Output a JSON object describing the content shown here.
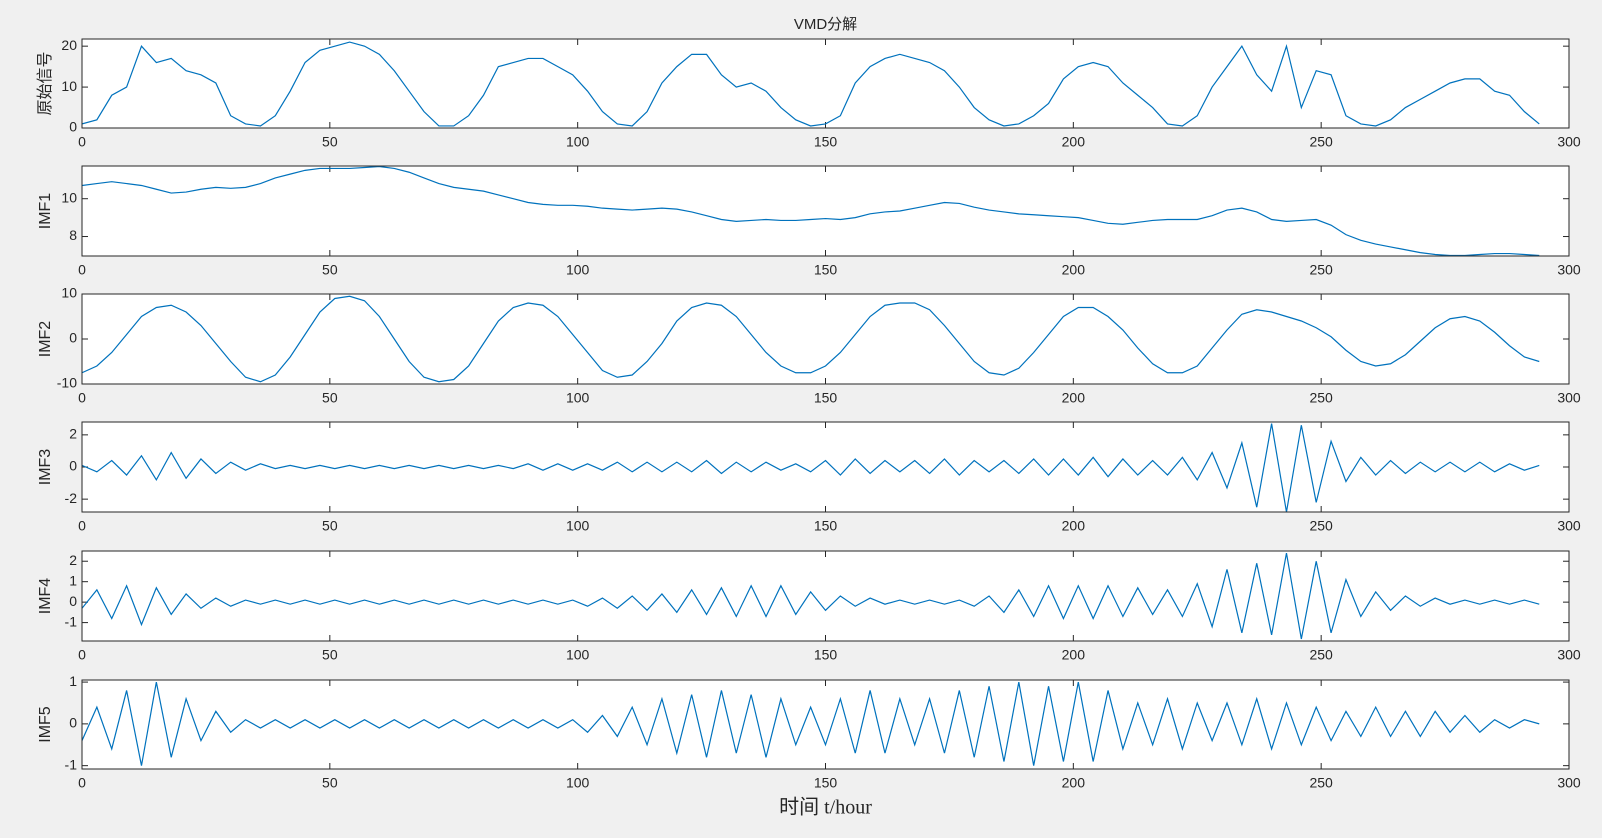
{
  "chart_data": [
    {
      "type": "line",
      "title": "VMD分解",
      "ylabel": "原始信号",
      "color": "#0072bd",
      "x": [
        0,
        3,
        6,
        9,
        12,
        15,
        18,
        21,
        24,
        27,
        30,
        33,
        36,
        39,
        42,
        45,
        48,
        51,
        54,
        57,
        60,
        63,
        66,
        69,
        72,
        75,
        78,
        81,
        84,
        87,
        90,
        93,
        96,
        99,
        102,
        105,
        108,
        111,
        114,
        117,
        120,
        123,
        126,
        129,
        132,
        135,
        138,
        141,
        144,
        147,
        150,
        153,
        156,
        159,
        162,
        165,
        168,
        171,
        174,
        177,
        180,
        183,
        186,
        189,
        192,
        195,
        198,
        201,
        204,
        207,
        210,
        213,
        216,
        219,
        222,
        225,
        228,
        231,
        234,
        237,
        240,
        243,
        246,
        249,
        252,
        255,
        258,
        261,
        264,
        267,
        270,
        273,
        276,
        279,
        282,
        285,
        288,
        291,
        294
      ],
      "values": [
        1,
        2,
        8,
        10,
        20,
        16,
        17,
        14,
        13,
        11,
        3,
        1,
        0.5,
        3,
        9,
        16,
        19,
        20,
        21,
        20,
        18,
        14,
        9,
        4,
        0.5,
        0.5,
        3,
        8,
        15,
        16,
        17,
        17,
        15,
        13,
        9,
        4,
        1,
        0.5,
        4,
        11,
        15,
        18,
        18,
        13,
        10,
        11,
        9,
        5,
        2,
        0.5,
        1,
        3,
        11,
        15,
        17,
        18,
        17,
        16,
        14,
        10,
        5,
        2,
        0.5,
        1,
        3,
        6,
        12,
        15,
        16,
        15,
        11,
        8,
        5,
        1,
        0.5,
        3,
        10,
        15,
        20,
        13,
        9,
        20,
        5,
        14,
        13,
        3,
        1,
        0.5,
        2,
        5,
        7,
        9,
        11,
        12,
        12,
        9,
        8,
        4,
        1
      ],
      "xlim": [
        0,
        300
      ],
      "xticks": [
        0,
        50,
        100,
        150,
        200,
        250,
        300
      ],
      "ylim": [
        0,
        21.75
      ],
      "yticks": [
        0,
        10,
        20
      ]
    },
    {
      "type": "line",
      "ylabel": "IMF1",
      "color": "#0072bd",
      "x": [
        0,
        3,
        6,
        9,
        12,
        15,
        18,
        21,
        24,
        27,
        30,
        33,
        36,
        39,
        42,
        45,
        48,
        51,
        54,
        57,
        60,
        63,
        66,
        69,
        72,
        75,
        78,
        81,
        84,
        87,
        90,
        93,
        96,
        99,
        102,
        105,
        108,
        111,
        114,
        117,
        120,
        123,
        126,
        129,
        132,
        135,
        138,
        141,
        144,
        147,
        150,
        153,
        156,
        159,
        162,
        165,
        168,
        171,
        174,
        177,
        180,
        183,
        186,
        189,
        192,
        195,
        198,
        201,
        204,
        207,
        210,
        213,
        216,
        219,
        222,
        225,
        228,
        231,
        234,
        237,
        240,
        243,
        246,
        249,
        252,
        255,
        258,
        261,
        264,
        267,
        270,
        273,
        276,
        279,
        282,
        285,
        288,
        291,
        294
      ],
      "values": [
        10.7,
        10.8,
        10.9,
        10.8,
        10.7,
        10.5,
        10.3,
        10.35,
        10.5,
        10.6,
        10.55,
        10.6,
        10.8,
        11.1,
        11.3,
        11.5,
        11.6,
        11.6,
        11.6,
        11.65,
        11.7,
        11.6,
        11.4,
        11.1,
        10.8,
        10.6,
        10.5,
        10.4,
        10.2,
        10.0,
        9.8,
        9.7,
        9.65,
        9.65,
        9.6,
        9.5,
        9.45,
        9.4,
        9.45,
        9.5,
        9.45,
        9.3,
        9.1,
        8.9,
        8.8,
        8.85,
        8.9,
        8.85,
        8.85,
        8.9,
        8.95,
        8.9,
        9.0,
        9.2,
        9.3,
        9.35,
        9.5,
        9.65,
        9.8,
        9.75,
        9.55,
        9.4,
        9.3,
        9.2,
        9.15,
        9.1,
        9.05,
        9.0,
        8.85,
        8.7,
        8.65,
        8.75,
        8.85,
        8.9,
        8.9,
        8.9,
        9.1,
        9.4,
        9.5,
        9.3,
        8.9,
        8.8,
        8.85,
        8.9,
        8.6,
        8.1,
        7.8,
        7.6,
        7.45,
        7.3,
        7.15,
        7.05,
        7.0,
        7.0,
        7.05,
        7.1,
        7.1,
        7.05,
        7.0
      ],
      "xlim": [
        0,
        300
      ],
      "xticks": [
        0,
        50,
        100,
        150,
        200,
        250,
        300
      ],
      "ylim": [
        6.97,
        11.73
      ],
      "yticks": [
        8,
        10
      ]
    },
    {
      "type": "line",
      "ylabel": "IMF2",
      "color": "#0072bd",
      "x": [
        0,
        3,
        6,
        9,
        12,
        15,
        18,
        21,
        24,
        27,
        30,
        33,
        36,
        39,
        42,
        45,
        48,
        51,
        54,
        57,
        60,
        63,
        66,
        69,
        72,
        75,
        78,
        81,
        84,
        87,
        90,
        93,
        96,
        99,
        102,
        105,
        108,
        111,
        114,
        117,
        120,
        123,
        126,
        129,
        132,
        135,
        138,
        141,
        144,
        147,
        150,
        153,
        156,
        159,
        162,
        165,
        168,
        171,
        174,
        177,
        180,
        183,
        186,
        189,
        192,
        195,
        198,
        201,
        204,
        207,
        210,
        213,
        216,
        219,
        222,
        225,
        228,
        231,
        234,
        237,
        240,
        243,
        246,
        249,
        252,
        255,
        258,
        261,
        264,
        267,
        270,
        273,
        276,
        279,
        282,
        285,
        288,
        291,
        294
      ],
      "values": [
        -7.5,
        -6,
        -3,
        1,
        5,
        7,
        7.5,
        6,
        3,
        -1,
        -5,
        -8.5,
        -9.5,
        -8,
        -4,
        1,
        6,
        9,
        9.5,
        8.5,
        5,
        0,
        -5,
        -8.5,
        -9.5,
        -9,
        -6,
        -1,
        4,
        7,
        8,
        7.5,
        5,
        1,
        -3,
        -7,
        -8.5,
        -8,
        -5,
        -1,
        4,
        7,
        8,
        7.5,
        5,
        1,
        -3,
        -6,
        -7.5,
        -7.5,
        -6,
        -3,
        1,
        5,
        7.5,
        8,
        8,
        6.5,
        3,
        -1,
        -5,
        -7.5,
        -8,
        -6.5,
        -3,
        1,
        5,
        7,
        7,
        5,
        2,
        -2,
        -5.5,
        -7.5,
        -7.5,
        -6,
        -2,
        2,
        5.5,
        6.5,
        6,
        5,
        4,
        2.5,
        0.5,
        -2.5,
        -5,
        -6,
        -5.5,
        -3.5,
        -0.5,
        2.5,
        4.5,
        5,
        4,
        1.5,
        -1.5,
        -4,
        -5
      ],
      "xlim": [
        0,
        300
      ],
      "xticks": [
        0,
        50,
        100,
        150,
        200,
        250,
        300
      ],
      "ylim": [
        -10,
        10
      ],
      "yticks": [
        -10,
        0,
        10
      ]
    },
    {
      "type": "line",
      "ylabel": "IMF3",
      "color": "#0072bd",
      "x": [
        0,
        3,
        6,
        9,
        12,
        15,
        18,
        21,
        24,
        27,
        30,
        33,
        36,
        39,
        42,
        45,
        48,
        51,
        54,
        57,
        60,
        63,
        66,
        69,
        72,
        75,
        78,
        81,
        84,
        87,
        90,
        93,
        96,
        99,
        102,
        105,
        108,
        111,
        114,
        117,
        120,
        123,
        126,
        129,
        132,
        135,
        138,
        141,
        144,
        147,
        150,
        153,
        156,
        159,
        162,
        165,
        168,
        171,
        174,
        177,
        180,
        183,
        186,
        189,
        192,
        195,
        198,
        201,
        204,
        207,
        210,
        213,
        216,
        219,
        222,
        225,
        228,
        231,
        234,
        237,
        240,
        243,
        246,
        249,
        252,
        255,
        258,
        261,
        264,
        267,
        270,
        273,
        276,
        279,
        282,
        285,
        288,
        291,
        294
      ],
      "values": [
        0.1,
        -0.3,
        0.4,
        -0.5,
        0.7,
        -0.8,
        0.9,
        -0.7,
        0.5,
        -0.4,
        0.3,
        -0.2,
        0.2,
        -0.1,
        0.1,
        -0.1,
        0.1,
        -0.1,
        0.1,
        -0.1,
        0.1,
        -0.1,
        0.1,
        -0.1,
        0.1,
        -0.1,
        0.1,
        -0.1,
        0.1,
        -0.1,
        0.2,
        -0.2,
        0.2,
        -0.2,
        0.2,
        -0.2,
        0.3,
        -0.3,
        0.3,
        -0.3,
        0.3,
        -0.3,
        0.4,
        -0.4,
        0.3,
        -0.3,
        0.3,
        -0.2,
        0.2,
        -0.3,
        0.4,
        -0.5,
        0.5,
        -0.4,
        0.4,
        -0.3,
        0.4,
        -0.4,
        0.5,
        -0.5,
        0.4,
        -0.3,
        0.4,
        -0.4,
        0.5,
        -0.5,
        0.5,
        -0.5,
        0.6,
        -0.6,
        0.5,
        -0.5,
        0.4,
        -0.5,
        0.6,
        -0.8,
        0.9,
        -1.3,
        1.5,
        -2.5,
        2.7,
        -2.8,
        2.6,
        -2.2,
        1.6,
        -0.9,
        0.6,
        -0.5,
        0.4,
        -0.4,
        0.3,
        -0.3,
        0.3,
        -0.3,
        0.3,
        -0.3,
        0.2,
        -0.2,
        0.1
      ],
      "xlim": [
        0,
        300
      ],
      "xticks": [
        0,
        50,
        100,
        150,
        200,
        250,
        300
      ],
      "ylim": [
        -2.8,
        2.8
      ],
      "yticks": [
        -2,
        0,
        2
      ]
    },
    {
      "type": "line",
      "ylabel": "IMF4",
      "color": "#0072bd",
      "x": [
        0,
        3,
        6,
        9,
        12,
        15,
        18,
        21,
        24,
        27,
        30,
        33,
        36,
        39,
        42,
        45,
        48,
        51,
        54,
        57,
        60,
        63,
        66,
        69,
        72,
        75,
        78,
        81,
        84,
        87,
        90,
        93,
        96,
        99,
        102,
        105,
        108,
        111,
        114,
        117,
        120,
        123,
        126,
        129,
        132,
        135,
        138,
        141,
        144,
        147,
        150,
        153,
        156,
        159,
        162,
        165,
        168,
        171,
        174,
        177,
        180,
        183,
        186,
        189,
        192,
        195,
        198,
        201,
        204,
        207,
        210,
        213,
        216,
        219,
        222,
        225,
        228,
        231,
        234,
        237,
        240,
        243,
        246,
        249,
        252,
        255,
        258,
        261,
        264,
        267,
        270,
        273,
        276,
        279,
        282,
        285,
        288,
        291,
        294
      ],
      "values": [
        -0.3,
        0.6,
        -0.8,
        0.8,
        -1.1,
        0.7,
        -0.6,
        0.4,
        -0.3,
        0.2,
        -0.2,
        0.1,
        -0.1,
        0.1,
        -0.1,
        0.1,
        -0.1,
        0.1,
        -0.1,
        0.1,
        -0.1,
        0.1,
        -0.1,
        0.1,
        -0.1,
        0.1,
        -0.1,
        0.1,
        -0.1,
        0.1,
        -0.1,
        0.1,
        -0.1,
        0.1,
        -0.2,
        0.2,
        -0.3,
        0.3,
        -0.4,
        0.4,
        -0.5,
        0.6,
        -0.6,
        0.7,
        -0.7,
        0.8,
        -0.7,
        0.8,
        -0.6,
        0.5,
        -0.4,
        0.3,
        -0.2,
        0.2,
        -0.1,
        0.1,
        -0.1,
        0.1,
        -0.1,
        0.1,
        -0.2,
        0.3,
        -0.5,
        0.6,
        -0.7,
        0.8,
        -0.8,
        0.8,
        -0.8,
        0.8,
        -0.7,
        0.7,
        -0.6,
        0.6,
        -0.7,
        0.9,
        -1.2,
        1.6,
        -1.5,
        1.9,
        -1.6,
        2.4,
        -1.8,
        2.0,
        -1.5,
        1.1,
        -0.7,
        0.5,
        -0.4,
        0.3,
        -0.2,
        0.2,
        -0.1,
        0.1,
        -0.1,
        0.1,
        -0.1,
        0.1,
        -0.1
      ],
      "xlim": [
        0,
        300
      ],
      "xticks": [
        0,
        50,
        100,
        150,
        200,
        250,
        300
      ],
      "ylim": [
        -1.9,
        2.5
      ],
      "yticks": [
        -1,
        0,
        1,
        2
      ]
    },
    {
      "type": "line",
      "ylabel": "IMF5",
      "xlabel": "时间 t/hour",
      "color": "#0072bd",
      "x": [
        0,
        3,
        6,
        9,
        12,
        15,
        18,
        21,
        24,
        27,
        30,
        33,
        36,
        39,
        42,
        45,
        48,
        51,
        54,
        57,
        60,
        63,
        66,
        69,
        72,
        75,
        78,
        81,
        84,
        87,
        90,
        93,
        96,
        99,
        102,
        105,
        108,
        111,
        114,
        117,
        120,
        123,
        126,
        129,
        132,
        135,
        138,
        141,
        144,
        147,
        150,
        153,
        156,
        159,
        162,
        165,
        168,
        171,
        174,
        177,
        180,
        183,
        186,
        189,
        192,
        195,
        198,
        201,
        204,
        207,
        210,
        213,
        216,
        219,
        222,
        225,
        228,
        231,
        234,
        237,
        240,
        243,
        246,
        249,
        252,
        255,
        258,
        261,
        264,
        267,
        270,
        273,
        276,
        279,
        282,
        285,
        288,
        291,
        294
      ],
      "values": [
        -0.4,
        0.4,
        -0.6,
        0.8,
        -1.0,
        1.0,
        -0.8,
        0.6,
        -0.4,
        0.3,
        -0.2,
        0.1,
        -0.1,
        0.1,
        -0.1,
        0.1,
        -0.1,
        0.1,
        -0.1,
        0.1,
        -0.1,
        0.1,
        -0.1,
        0.1,
        -0.1,
        0.1,
        -0.1,
        0.1,
        -0.1,
        0.1,
        -0.1,
        0.1,
        -0.1,
        0.1,
        -0.2,
        0.2,
        -0.3,
        0.4,
        -0.5,
        0.6,
        -0.7,
        0.7,
        -0.8,
        0.8,
        -0.7,
        0.7,
        -0.8,
        0.6,
        -0.5,
        0.4,
        -0.5,
        0.6,
        -0.7,
        0.8,
        -0.7,
        0.6,
        -0.5,
        0.6,
        -0.7,
        0.8,
        -0.8,
        0.9,
        -0.9,
        1.0,
        -1.0,
        0.9,
        -0.9,
        1.0,
        -0.9,
        0.8,
        -0.6,
        0.5,
        -0.5,
        0.6,
        -0.6,
        0.5,
        -0.4,
        0.5,
        -0.5,
        0.6,
        -0.6,
        0.5,
        -0.5,
        0.4,
        -0.4,
        0.3,
        -0.3,
        0.4,
        -0.3,
        0.3,
        -0.3,
        0.3,
        -0.2,
        0.2,
        -0.2,
        0.1,
        -0.1,
        0.1,
        0
      ],
      "xlim": [
        0,
        300
      ],
      "xticks": [
        0,
        50,
        100,
        150,
        200,
        250,
        300
      ],
      "ylim": [
        -1.08,
        1.05
      ],
      "yticks": [
        -1,
        0,
        1
      ]
    }
  ]
}
